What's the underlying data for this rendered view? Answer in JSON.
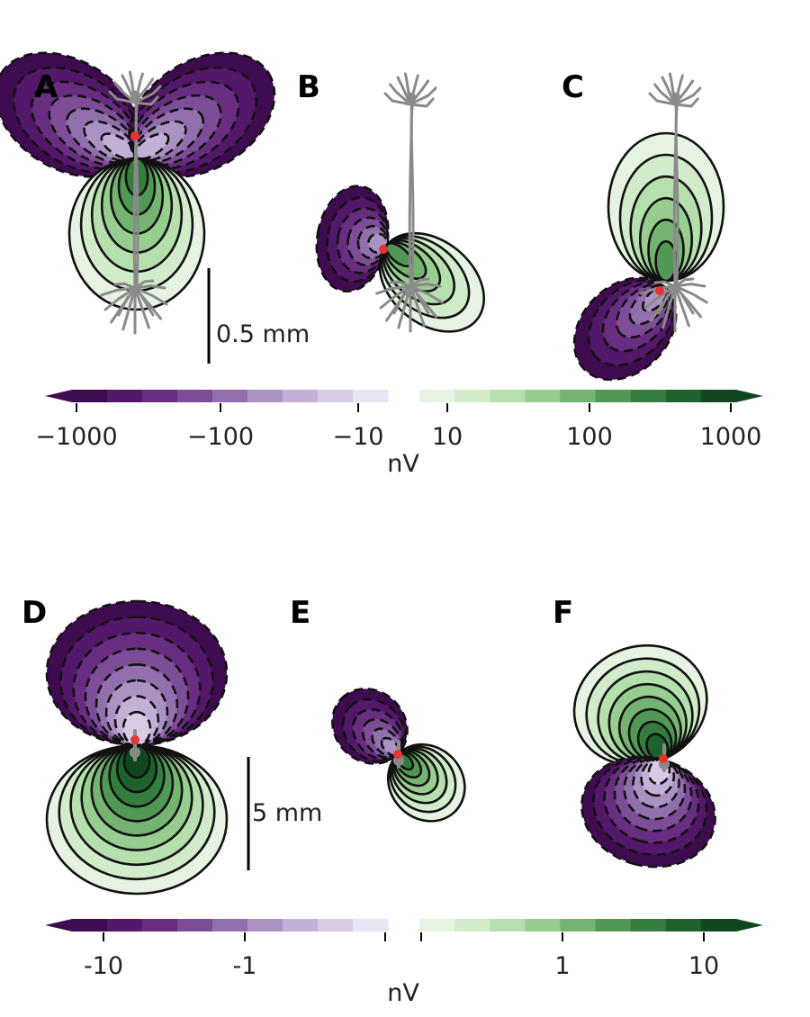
{
  "top": {
    "panels": [
      "A",
      "B",
      "C"
    ],
    "scalebar": "0.5 mm",
    "colorbar": {
      "ticks": [
        "−1000",
        "−100",
        "−10",
        "10",
        "100",
        "1000"
      ],
      "unit": "nV"
    }
  },
  "bottom": {
    "panels": [
      "D",
      "E",
      "F"
    ],
    "scalebar": "5 mm",
    "colorbar": {
      "ticks": [
        "-10",
        "-1",
        "1",
        "10"
      ],
      "unit": "nV"
    }
  },
  "colors": {
    "negative": [
      "#3f0b4f",
      "#53186a",
      "#682d80",
      "#7d4d98",
      "#9270ae",
      "#aa92c3",
      "#c2b0d6",
      "#d8cbe6",
      "#ebe3f2"
    ],
    "positive": [
      "#e6f3e2",
      "#d2ebcb",
      "#b6dfae",
      "#97cd8f",
      "#74b470",
      "#519855",
      "#357d3f",
      "#1d612c",
      "#104620"
    ],
    "neuron": "#8a8a8a",
    "soma_marker": "#e8342f"
  }
}
